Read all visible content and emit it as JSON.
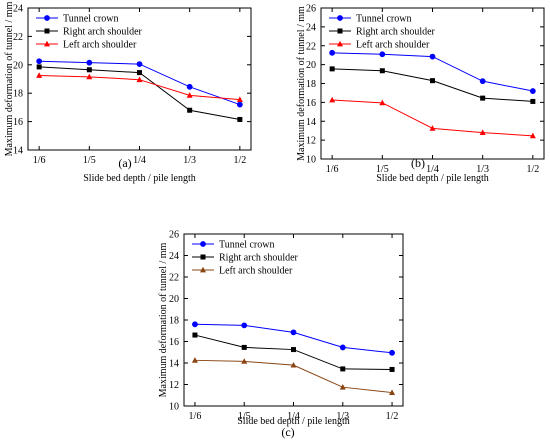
{
  "chart_data": [
    {
      "type": "line",
      "panel_label": "(a)",
      "xlabel": "Slide bed depth / pile length",
      "ylabel": "Maximum deformation of tunnel / mm",
      "categories": [
        "1/6",
        "1/5",
        "1/4",
        "1/3",
        "1/2"
      ],
      "ylim": [
        14,
        24
      ],
      "yticks": [
        14,
        16,
        18,
        20,
        22,
        24
      ],
      "grid": false,
      "legend_position": "top-left",
      "series": [
        {
          "name": "Tunnel crown",
          "color": "#0000ff",
          "marker": "circle",
          "values": [
            20.25,
            20.15,
            20.05,
            18.45,
            17.2
          ]
        },
        {
          "name": "Right arch shoulder",
          "color": "#000000",
          "marker": "square",
          "values": [
            19.85,
            19.65,
            19.45,
            16.8,
            16.15
          ]
        },
        {
          "name": "Left arch shoulder",
          "color": "#ff0000",
          "marker": "triangle",
          "values": [
            19.25,
            19.15,
            18.95,
            17.85,
            17.55
          ]
        }
      ]
    },
    {
      "type": "line",
      "panel_label": "(b)",
      "xlabel": "Slide bed depth / pile length",
      "ylabel": "Maximum deformation of tunnel / mm",
      "categories": [
        "1/6",
        "1/5",
        "1/4",
        "1/3",
        "1/2"
      ],
      "ylim": [
        10,
        26
      ],
      "yticks": [
        10,
        12,
        14,
        16,
        18,
        20,
        22,
        24,
        26
      ],
      "grid": false,
      "legend_position": "top-left",
      "series": [
        {
          "name": "Tunnel crown",
          "color": "#0000ff",
          "marker": "circle",
          "values": [
            21.25,
            21.1,
            20.85,
            18.25,
            17.2
          ]
        },
        {
          "name": "Right arch shoulder",
          "color": "#000000",
          "marker": "square",
          "values": [
            19.55,
            19.35,
            18.3,
            16.45,
            16.1
          ]
        },
        {
          "name": "Left arch shoulder",
          "color": "#ff0000",
          "marker": "triangle",
          "values": [
            16.25,
            15.95,
            13.25,
            12.8,
            12.45
          ]
        }
      ]
    },
    {
      "type": "line",
      "panel_label": "(c)",
      "xlabel": "Slide bed depth / pile length",
      "ylabel": "Maximum deformation of tunnel / mm",
      "categories": [
        "1/6",
        "1/5",
        "1/4",
        "1/3",
        "1/2"
      ],
      "ylim": [
        10,
        26
      ],
      "yticks": [
        10,
        12,
        14,
        16,
        18,
        20,
        22,
        24,
        26
      ],
      "grid": false,
      "legend_position": "top-left",
      "series": [
        {
          "name": "Tunnel crown",
          "color": "#0000ff",
          "marker": "circle",
          "values": [
            17.6,
            17.5,
            16.85,
            15.45,
            14.95
          ]
        },
        {
          "name": "Right arch shoulder",
          "color": "#000000",
          "marker": "square",
          "values": [
            16.6,
            15.45,
            15.25,
            13.45,
            13.4
          ]
        },
        {
          "name": "Left arch shoulder",
          "color": "#8b4513",
          "marker": "triangle",
          "values": [
            14.25,
            14.15,
            13.8,
            11.75,
            11.25
          ]
        }
      ]
    }
  ]
}
